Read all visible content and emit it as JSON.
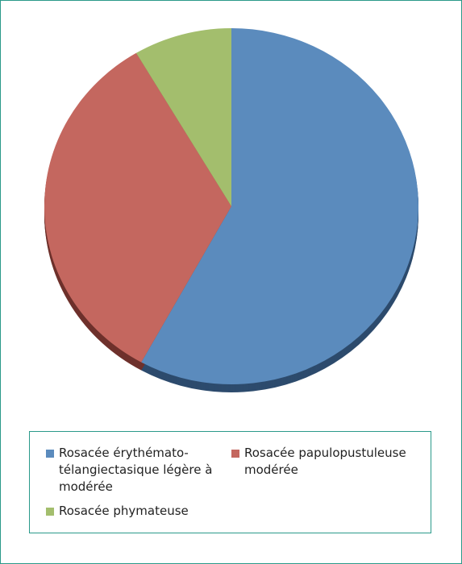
{
  "chart_data": {
    "type": "pie",
    "title": "",
    "series": [
      {
        "values": [
          58,
          33.5,
          8.5
        ]
      }
    ],
    "categories": [
      "Rosacée érythémato-télangiectasique légère à modérée",
      "Rosacée papulopustuleuse modérée",
      "Rosacée phymateuse"
    ],
    "colors": [
      "#5b8bbd",
      "#c4675f",
      "#a3be6d"
    ],
    "shadow_colors": [
      "#2d4b6d",
      "#6e312c",
      "#5e7435"
    ],
    "start_angle": "12 o'clock",
    "direction": "clockwise",
    "legend_position": "bottom",
    "border_color": "#2a9a8a"
  },
  "legend": {
    "items": [
      {
        "label": "Rosacée érythémato-télangiectasique légère à modérée",
        "color": "#5b8bbd"
      },
      {
        "label": "Rosacée papulopustuleuse modérée",
        "color": "#c4675f"
      },
      {
        "label": "Rosacée phymateuse",
        "color": "#a3be6d"
      }
    ]
  }
}
